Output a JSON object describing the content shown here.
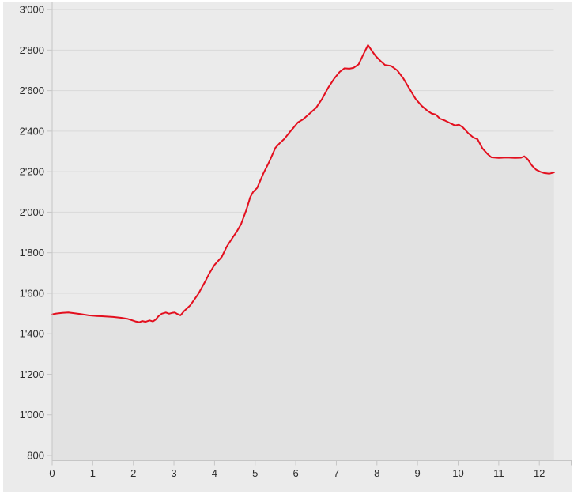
{
  "page": {
    "background": "#ffffff"
  },
  "chart": {
    "background": "#ebebeb",
    "grid_color": "#d9d9d9",
    "axis_color": "#c6c6c6",
    "tick_color": "#c6c6c6",
    "label_color": "#2b2b2b",
    "line_color": "#e30f1e",
    "fill_color": "#e2e2e2"
  },
  "chart_data": {
    "type": "area",
    "title": "",
    "xlabel": "",
    "ylabel": "",
    "grid": "horizontal-only",
    "legend": "none",
    "xlim": [
      0,
      12.8
    ],
    "ylim": [
      800,
      3000
    ],
    "x_ticks": [
      0,
      1,
      2,
      3,
      4,
      5,
      6,
      7,
      8,
      9,
      10,
      11,
      12
    ],
    "x_tick_labels": [
      "0",
      "1",
      "2",
      "3",
      "4",
      "5",
      "6",
      "7",
      "8",
      "9",
      "10",
      "11",
      "12"
    ],
    "y_ticks": [
      800,
      1000,
      1200,
      1400,
      1600,
      1800,
      2000,
      2200,
      2400,
      2600,
      2800,
      3000
    ],
    "y_tick_labels": [
      "800",
      "1'000",
      "1'200",
      "1'400",
      "1'600",
      "1'800",
      "2'000",
      "2'200",
      "2'400",
      "2'600",
      "2'800",
      "3'000"
    ],
    "series": [
      {
        "name": "elevation-profile",
        "points": [
          [
            0.0,
            1496
          ],
          [
            0.1,
            1500
          ],
          [
            0.25,
            1503
          ],
          [
            0.4,
            1505
          ],
          [
            0.55,
            1501
          ],
          [
            0.7,
            1497
          ],
          [
            0.9,
            1491
          ],
          [
            1.1,
            1488
          ],
          [
            1.3,
            1486
          ],
          [
            1.5,
            1483
          ],
          [
            1.7,
            1479
          ],
          [
            1.85,
            1474
          ],
          [
            1.95,
            1468
          ],
          [
            2.05,
            1461
          ],
          [
            2.15,
            1457
          ],
          [
            2.22,
            1463
          ],
          [
            2.3,
            1459
          ],
          [
            2.4,
            1466
          ],
          [
            2.48,
            1461
          ],
          [
            2.55,
            1470
          ],
          [
            2.62,
            1487
          ],
          [
            2.7,
            1499
          ],
          [
            2.8,
            1505
          ],
          [
            2.88,
            1499
          ],
          [
            2.95,
            1503
          ],
          [
            3.02,
            1505
          ],
          [
            3.08,
            1498
          ],
          [
            3.16,
            1491
          ],
          [
            3.25,
            1512
          ],
          [
            3.4,
            1540
          ],
          [
            3.6,
            1597
          ],
          [
            3.78,
            1662
          ],
          [
            3.88,
            1701
          ],
          [
            4.0,
            1740
          ],
          [
            4.1,
            1762
          ],
          [
            4.18,
            1780
          ],
          [
            4.3,
            1830
          ],
          [
            4.45,
            1876
          ],
          [
            4.55,
            1905
          ],
          [
            4.65,
            1940
          ],
          [
            4.78,
            2010
          ],
          [
            4.88,
            2075
          ],
          [
            4.95,
            2100
          ],
          [
            5.05,
            2120
          ],
          [
            5.2,
            2190
          ],
          [
            5.35,
            2250
          ],
          [
            5.5,
            2318
          ],
          [
            5.6,
            2340
          ],
          [
            5.72,
            2362
          ],
          [
            5.85,
            2395
          ],
          [
            5.95,
            2418
          ],
          [
            6.05,
            2443
          ],
          [
            6.18,
            2458
          ],
          [
            6.35,
            2488
          ],
          [
            6.5,
            2515
          ],
          [
            6.65,
            2560
          ],
          [
            6.8,
            2615
          ],
          [
            6.95,
            2660
          ],
          [
            7.08,
            2692
          ],
          [
            7.2,
            2710
          ],
          [
            7.32,
            2708
          ],
          [
            7.42,
            2712
          ],
          [
            7.55,
            2730
          ],
          [
            7.65,
            2772
          ],
          [
            7.78,
            2825
          ],
          [
            7.88,
            2795
          ],
          [
            7.97,
            2770
          ],
          [
            8.08,
            2748
          ],
          [
            8.2,
            2726
          ],
          [
            8.35,
            2722
          ],
          [
            8.5,
            2700
          ],
          [
            8.65,
            2660
          ],
          [
            8.8,
            2610
          ],
          [
            8.95,
            2560
          ],
          [
            9.1,
            2525
          ],
          [
            9.25,
            2500
          ],
          [
            9.35,
            2487
          ],
          [
            9.45,
            2482
          ],
          [
            9.55,
            2462
          ],
          [
            9.68,
            2452
          ],
          [
            9.8,
            2440
          ],
          [
            9.92,
            2428
          ],
          [
            10.02,
            2432
          ],
          [
            10.12,
            2418
          ],
          [
            10.25,
            2390
          ],
          [
            10.38,
            2368
          ],
          [
            10.48,
            2360
          ],
          [
            10.6,
            2315
          ],
          [
            10.72,
            2288
          ],
          [
            10.82,
            2271
          ],
          [
            11.0,
            2268
          ],
          [
            11.2,
            2270
          ],
          [
            11.4,
            2268
          ],
          [
            11.55,
            2269
          ],
          [
            11.63,
            2276
          ],
          [
            11.72,
            2260
          ],
          [
            11.82,
            2230
          ],
          [
            11.92,
            2210
          ],
          [
            12.02,
            2200
          ],
          [
            12.12,
            2193
          ],
          [
            12.25,
            2190
          ],
          [
            12.36,
            2196
          ]
        ]
      }
    ]
  }
}
